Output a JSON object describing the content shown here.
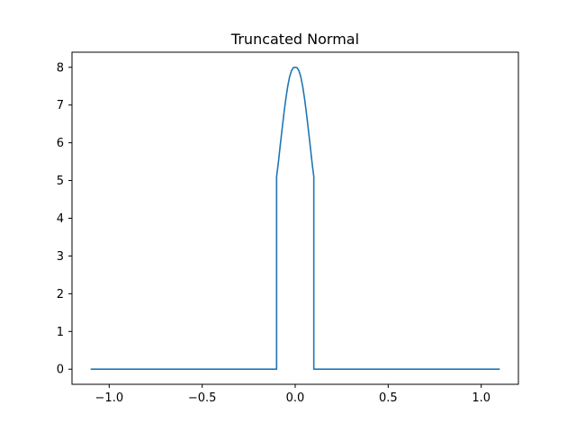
{
  "chart_data": {
    "type": "line",
    "title": "Truncated Normal",
    "xlabel": "",
    "ylabel": "",
    "xlim": [
      -1.2,
      1.2
    ],
    "ylim": [
      -0.4,
      8.4
    ],
    "grid": false,
    "xticks": [
      -1.0,
      -0.5,
      0.0,
      0.5,
      1.0
    ],
    "xtick_labels": [
      "−1.0",
      "−0.5",
      "0.0",
      "0.5",
      "1.0"
    ],
    "yticks": [
      0,
      1,
      2,
      3,
      4,
      5,
      6,
      7,
      8
    ],
    "ytick_labels": [
      "0",
      "1",
      "2",
      "3",
      "4",
      "5",
      "6",
      "7",
      "8"
    ],
    "series": [
      {
        "color": "#1f77b4",
        "x": [
          -1.1,
          -0.1,
          -0.1,
          -0.09,
          -0.08,
          -0.07,
          -0.06,
          -0.05,
          -0.04,
          -0.03,
          -0.02,
          -0.01,
          0.0,
          0.01,
          0.02,
          0.03,
          0.04,
          0.05,
          0.06,
          0.07,
          0.08,
          0.09,
          0.1,
          0.1,
          1.1
        ],
        "y": [
          0,
          0,
          5.1,
          5.5,
          5.95,
          6.38,
          6.8,
          7.18,
          7.5,
          7.75,
          7.91,
          7.99,
          8.0,
          7.99,
          7.91,
          7.75,
          7.5,
          7.18,
          6.8,
          6.38,
          5.95,
          5.5,
          5.1,
          0,
          0
        ]
      }
    ]
  }
}
